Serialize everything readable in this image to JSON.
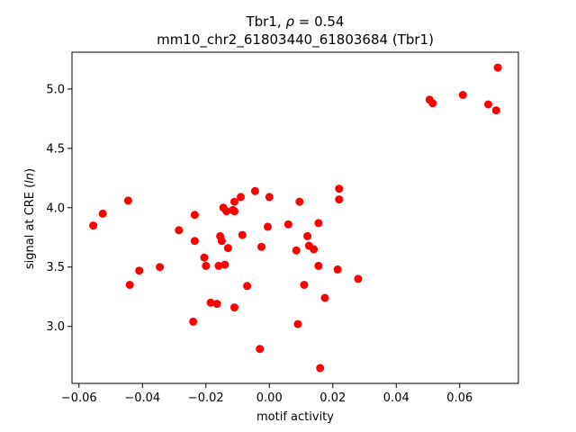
{
  "chart_data": {
    "type": "scatter",
    "title": {
      "line1_prefix": "Tbr1, ",
      "line1_symbol": "ρ",
      "line1_suffix": " = 0.54",
      "line2": "mm10_chr2_61803440_61803684 (Tbr1)"
    },
    "xlabel": "motif activity",
    "ylabel": {
      "prefix": "signal at CRE (",
      "italic": "ln",
      "suffix": ")"
    },
    "xlim": [
      -0.0622,
      0.0785
    ],
    "ylim": [
      2.52,
      5.31
    ],
    "xticks": [
      -0.06,
      -0.04,
      -0.02,
      0.0,
      0.02,
      0.04,
      0.06
    ],
    "xtick_labels": [
      "−0.06",
      "−0.04",
      "−0.02",
      "0.00",
      "0.02",
      "0.04",
      "0.06"
    ],
    "yticks": [
      3.0,
      3.5,
      4.0,
      4.5,
      5.0
    ],
    "ytick_labels": [
      "3.0",
      "3.5",
      "4.0",
      "4.5",
      "5.0"
    ],
    "grid": false,
    "legend": "none",
    "marker_color": "#ff0000",
    "points": [
      {
        "x": -0.0555,
        "y": 3.85
      },
      {
        "x": -0.0525,
        "y": 3.95
      },
      {
        "x": -0.0445,
        "y": 4.06
      },
      {
        "x": -0.044,
        "y": 3.35
      },
      {
        "x": -0.041,
        "y": 3.47
      },
      {
        "x": -0.0345,
        "y": 3.5
      },
      {
        "x": -0.0285,
        "y": 3.81
      },
      {
        "x": -0.024,
        "y": 3.04
      },
      {
        "x": -0.0235,
        "y": 3.72
      },
      {
        "x": -0.0235,
        "y": 3.94
      },
      {
        "x": -0.0205,
        "y": 3.58
      },
      {
        "x": -0.02,
        "y": 3.51
      },
      {
        "x": -0.0185,
        "y": 3.2
      },
      {
        "x": -0.0165,
        "y": 3.19
      },
      {
        "x": -0.016,
        "y": 3.51
      },
      {
        "x": -0.0155,
        "y": 3.76
      },
      {
        "x": -0.015,
        "y": 3.72
      },
      {
        "x": -0.0145,
        "y": 4.0
      },
      {
        "x": -0.014,
        "y": 3.52
      },
      {
        "x": -0.0135,
        "y": 3.97
      },
      {
        "x": -0.013,
        "y": 3.66
      },
      {
        "x": -0.0115,
        "y": 3.98
      },
      {
        "x": -0.011,
        "y": 3.97
      },
      {
        "x": -0.011,
        "y": 4.05
      },
      {
        "x": -0.011,
        "y": 3.16
      },
      {
        "x": -0.009,
        "y": 4.09
      },
      {
        "x": -0.0085,
        "y": 3.77
      },
      {
        "x": -0.007,
        "y": 3.34
      },
      {
        "x": -0.0045,
        "y": 4.14
      },
      {
        "x": -0.003,
        "y": 2.81
      },
      {
        "x": -0.0025,
        "y": 3.67
      },
      {
        "x": -0.0005,
        "y": 3.84
      },
      {
        "x": 0.0,
        "y": 4.09
      },
      {
        "x": 0.006,
        "y": 3.86
      },
      {
        "x": 0.0085,
        "y": 3.64
      },
      {
        "x": 0.009,
        "y": 3.02
      },
      {
        "x": 0.0095,
        "y": 4.05
      },
      {
        "x": 0.011,
        "y": 3.35
      },
      {
        "x": 0.012,
        "y": 3.76
      },
      {
        "x": 0.0125,
        "y": 3.68
      },
      {
        "x": 0.014,
        "y": 3.65
      },
      {
        "x": 0.0155,
        "y": 3.87
      },
      {
        "x": 0.0155,
        "y": 3.51
      },
      {
        "x": 0.016,
        "y": 2.65
      },
      {
        "x": 0.0175,
        "y": 3.24
      },
      {
        "x": 0.0215,
        "y": 3.48
      },
      {
        "x": 0.022,
        "y": 4.16
      },
      {
        "x": 0.022,
        "y": 4.07
      },
      {
        "x": 0.028,
        "y": 3.4
      },
      {
        "x": 0.0505,
        "y": 4.91
      },
      {
        "x": 0.0515,
        "y": 4.88
      },
      {
        "x": 0.061,
        "y": 4.95
      },
      {
        "x": 0.069,
        "y": 4.87
      },
      {
        "x": 0.0715,
        "y": 4.82
      },
      {
        "x": 0.072,
        "y": 5.18
      }
    ]
  }
}
